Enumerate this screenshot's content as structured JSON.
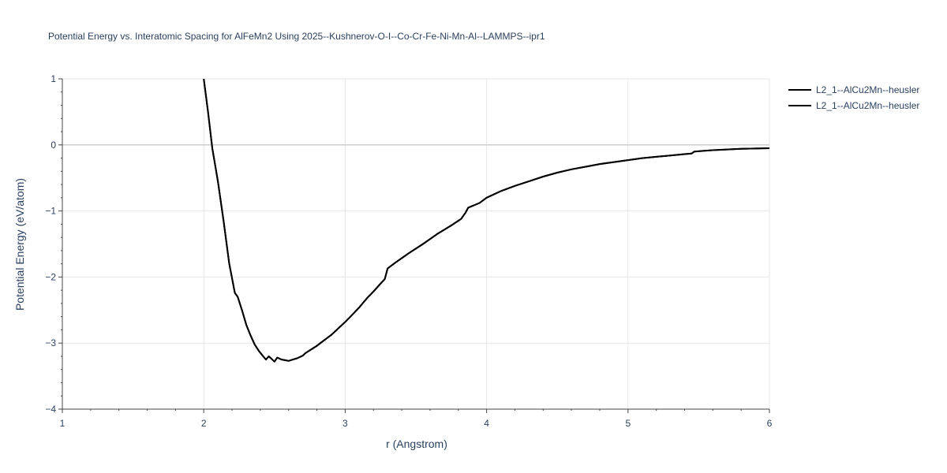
{
  "chart_data": {
    "type": "line",
    "title": "Potential Energy vs. Interatomic Spacing for AlFeMn2 Using 2025--Kushnerov-O-I--Co-Cr-Fe-Ni-Mn-Al--LAMMPS--ipr1",
    "xlabel": "r (Angstrom)",
    "ylabel": "Potential Energy (eV/atom)",
    "xlim": [
      1,
      6
    ],
    "ylim": [
      -4,
      1
    ],
    "xticks": [
      1,
      2,
      3,
      4,
      5,
      6
    ],
    "xtick_labels": [
      "1",
      "2",
      "3",
      "4",
      "5",
      "6"
    ],
    "yticks": [
      1,
      0,
      -1,
      -2,
      -3,
      -4
    ],
    "ytick_labels": [
      "1",
      "0",
      "−1",
      "−2",
      "−3",
      "−4"
    ],
    "grid": true,
    "legend_position": "top-right",
    "line_color": "#000000",
    "series": [
      {
        "name": "L2_1--AlCu2Mn--heusler",
        "x": [
          2.0,
          2.03,
          2.06,
          2.1,
          2.14,
          2.18,
          2.22,
          2.24,
          2.27,
          2.3,
          2.33,
          2.36,
          2.39,
          2.42,
          2.44,
          2.46,
          2.48,
          2.5,
          2.52,
          2.55,
          2.58,
          2.6,
          2.63,
          2.66,
          2.7,
          2.72,
          2.75,
          2.8,
          2.85,
          2.9,
          2.95,
          3.0,
          3.05,
          3.1,
          3.15,
          3.2,
          3.25,
          3.28,
          3.3,
          3.35,
          3.45,
          3.55,
          3.65,
          3.75,
          3.82,
          3.85,
          3.87,
          3.95,
          4.0,
          4.1,
          4.2,
          4.3,
          4.4,
          4.5,
          4.6,
          4.7,
          4.8,
          4.9,
          5.0,
          5.1,
          5.2,
          5.3,
          5.4,
          5.45,
          5.47,
          5.6,
          5.8,
          6.0
        ],
        "y": [
          1.0,
          0.5,
          -0.05,
          -0.55,
          -1.15,
          -1.8,
          -2.24,
          -2.3,
          -2.5,
          -2.72,
          -2.88,
          -3.02,
          -3.12,
          -3.2,
          -3.25,
          -3.2,
          -3.24,
          -3.28,
          -3.22,
          -3.25,
          -3.26,
          -3.27,
          -3.25,
          -3.23,
          -3.19,
          -3.15,
          -3.11,
          -3.04,
          -2.96,
          -2.88,
          -2.78,
          -2.68,
          -2.57,
          -2.46,
          -2.33,
          -2.22,
          -2.1,
          -2.03,
          -1.87,
          -1.79,
          -1.64,
          -1.5,
          -1.35,
          -1.22,
          -1.12,
          -1.03,
          -0.95,
          -0.88,
          -0.8,
          -0.7,
          -0.62,
          -0.55,
          -0.48,
          -0.42,
          -0.37,
          -0.33,
          -0.29,
          -0.26,
          -0.23,
          -0.2,
          -0.18,
          -0.16,
          -0.14,
          -0.13,
          -0.1,
          -0.08,
          -0.06,
          -0.05
        ]
      },
      {
        "name": "L2_1--AlCu2Mn--heusler",
        "x": [
          2.0,
          2.03,
          2.06,
          2.1,
          2.14,
          2.18,
          2.22,
          2.24,
          2.27,
          2.3,
          2.33,
          2.36,
          2.39,
          2.42,
          2.44,
          2.46,
          2.48,
          2.5,
          2.52,
          2.55,
          2.58,
          2.6,
          2.63,
          2.66,
          2.7,
          2.72,
          2.75,
          2.8,
          2.85,
          2.9,
          2.95,
          3.0,
          3.05,
          3.1,
          3.15,
          3.2,
          3.25,
          3.28,
          3.3,
          3.35,
          3.45,
          3.55,
          3.65,
          3.75,
          3.82,
          3.85,
          3.87,
          3.95,
          4.0,
          4.1,
          4.2,
          4.3,
          4.4,
          4.5,
          4.6,
          4.7,
          4.8,
          4.9,
          5.0,
          5.1,
          5.2,
          5.3,
          5.4,
          5.45,
          5.47,
          5.6,
          5.8,
          6.0
        ],
        "y": [
          1.0,
          0.5,
          -0.05,
          -0.55,
          -1.15,
          -1.8,
          -2.24,
          -2.3,
          -2.5,
          -2.72,
          -2.88,
          -3.02,
          -3.12,
          -3.2,
          -3.25,
          -3.2,
          -3.24,
          -3.28,
          -3.22,
          -3.25,
          -3.26,
          -3.27,
          -3.25,
          -3.23,
          -3.19,
          -3.15,
          -3.11,
          -3.04,
          -2.96,
          -2.88,
          -2.78,
          -2.68,
          -2.57,
          -2.46,
          -2.33,
          -2.22,
          -2.1,
          -2.03,
          -1.87,
          -1.79,
          -1.64,
          -1.5,
          -1.35,
          -1.22,
          -1.12,
          -1.03,
          -0.95,
          -0.88,
          -0.8,
          -0.7,
          -0.62,
          -0.55,
          -0.48,
          -0.42,
          -0.37,
          -0.33,
          -0.29,
          -0.26,
          -0.23,
          -0.2,
          -0.18,
          -0.16,
          -0.14,
          -0.13,
          -0.1,
          -0.08,
          -0.06,
          -0.05
        ]
      }
    ]
  }
}
